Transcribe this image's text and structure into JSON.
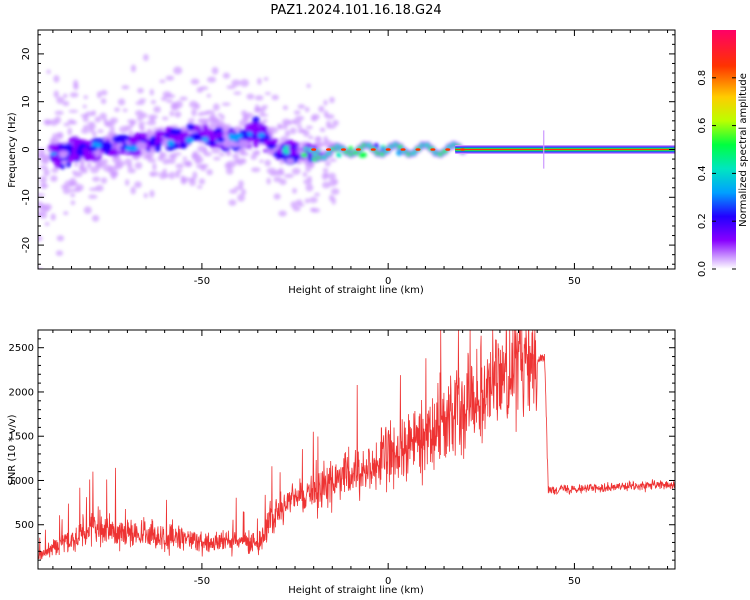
{
  "figure": {
    "title": "PAZ1.2024.101.16.18.G24"
  },
  "chart_data": [
    {
      "type": "heatmap",
      "xlabel": "Height of straight line (km)",
      "ylabel": "Frequency (Hz)",
      "xlim": [
        -94,
        77
      ],
      "ylim": [
        -25,
        25
      ],
      "x_ticks": [
        -50,
        0,
        50
      ],
      "y_ticks": [
        -20,
        -10,
        0,
        10,
        20
      ],
      "colorbar": {
        "label": "Normalized spectral amplitude",
        "range": [
          0,
          1
        ],
        "ticks": [
          0.0,
          0.2,
          0.4,
          0.6,
          0.8
        ],
        "colormap": [
          "#ffffff",
          "#cc99ff",
          "#8800ff",
          "#2200ff",
          "#00a0ff",
          "#00e6c0",
          "#00ff40",
          "#bbff00",
          "#ffcc00",
          "#ff3300",
          "#ff0066"
        ]
      },
      "ridge_frequency_hz": [
        {
          "x": -90,
          "y": -1
        },
        {
          "x": -80,
          "y": 0
        },
        {
          "x": -70,
          "y": 1
        },
        {
          "x": -60,
          "y": 2
        },
        {
          "x": -50,
          "y": 3
        },
        {
          "x": -40,
          "y": 2
        },
        {
          "x": -35,
          "y": 4
        },
        {
          "x": -30,
          "y": 0
        },
        {
          "x": -20,
          "y": -1
        },
        {
          "x": -10,
          "y": 0
        },
        {
          "x": 0,
          "y": 0
        },
        {
          "x": 10,
          "y": 0
        },
        {
          "x": 20,
          "y": 0
        },
        {
          "x": 77,
          "y": 0
        }
      ]
    },
    {
      "type": "line",
      "xlabel": "Height of straight line (km)",
      "ylabel": "SNR (10 * v/v)",
      "xlim": [
        -94,
        77
      ],
      "ylim": [
        0,
        2700
      ],
      "x_ticks": [
        -50,
        0,
        50
      ],
      "y_ticks": [
        500,
        1000,
        1500,
        2000,
        2500
      ],
      "color": "#ee3333",
      "series_envelope": [
        {
          "x": -94,
          "y": 150
        },
        {
          "x": -80,
          "y": 450
        },
        {
          "x": -60,
          "y": 350
        },
        {
          "x": -45,
          "y": 300
        },
        {
          "x": -35,
          "y": 300
        },
        {
          "x": -30,
          "y": 650
        },
        {
          "x": -20,
          "y": 900
        },
        {
          "x": -10,
          "y": 1050
        },
        {
          "x": 0,
          "y": 1250
        },
        {
          "x": 10,
          "y": 1500
        },
        {
          "x": 20,
          "y": 1850
        },
        {
          "x": 30,
          "y": 2200
        },
        {
          "x": 42,
          "y": 2400
        },
        {
          "x": 43,
          "y": 900
        },
        {
          "x": 77,
          "y": 950
        }
      ]
    }
  ]
}
